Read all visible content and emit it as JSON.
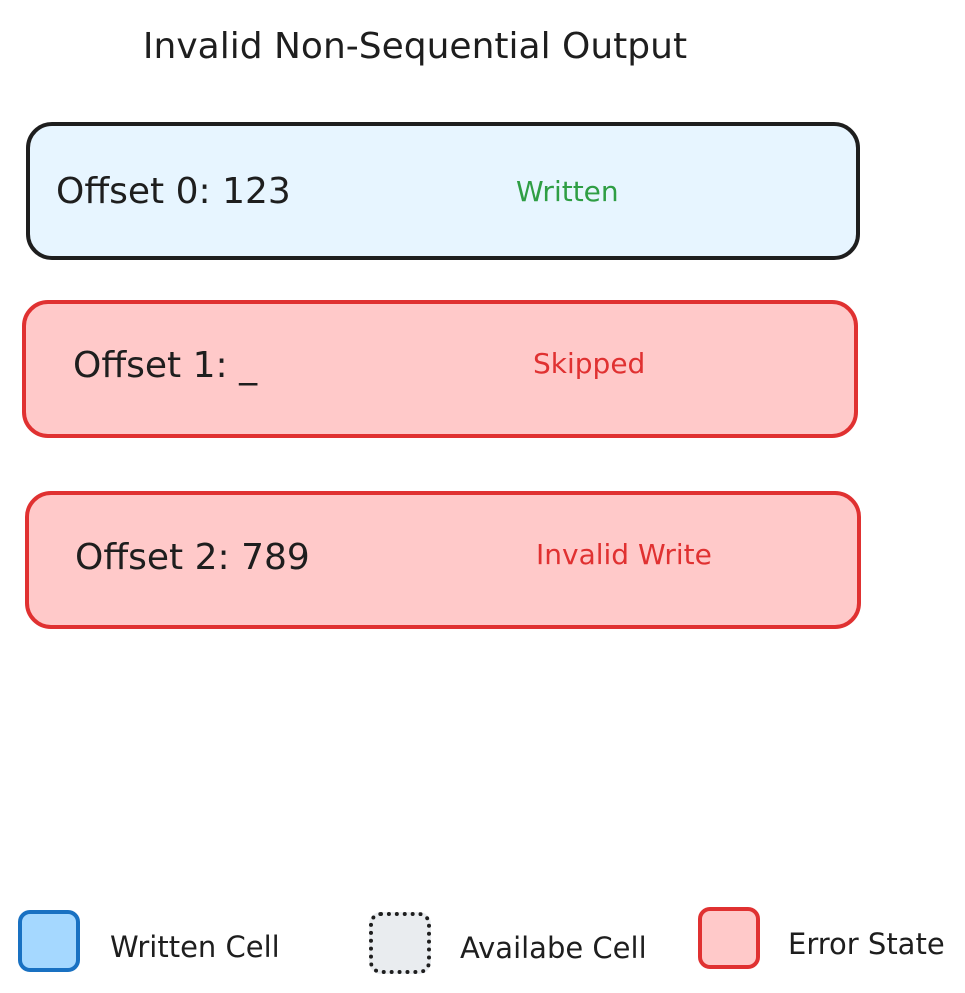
{
  "title": "Invalid Non-Sequential Output",
  "cells": [
    {
      "label": "Offset 0: 123",
      "status": "Written",
      "status_color": "#2f9e44",
      "fill": "#e7f5ff",
      "stroke": "#1e1e1e"
    },
    {
      "label": "Offset 1: _",
      "status": "Skipped",
      "status_color": "#e03131",
      "fill": "#ffc9c9",
      "stroke": "#e03131"
    },
    {
      "label": "Offset 2: 789",
      "status": "Invalid Write",
      "status_color": "#e03131",
      "fill": "#ffc9c9",
      "stroke": "#e03131"
    }
  ],
  "legend": [
    {
      "label": "Written Cell",
      "fill": "#a5d8ff",
      "stroke": "#1971c2",
      "style": "solid"
    },
    {
      "label": "Availabe Cell",
      "fill": "#e9ecef",
      "stroke": "#1e1e1e",
      "style": "dotted"
    },
    {
      "label": "Error State",
      "fill": "#ffc9c9",
      "stroke": "#e03131",
      "style": "solid"
    }
  ]
}
